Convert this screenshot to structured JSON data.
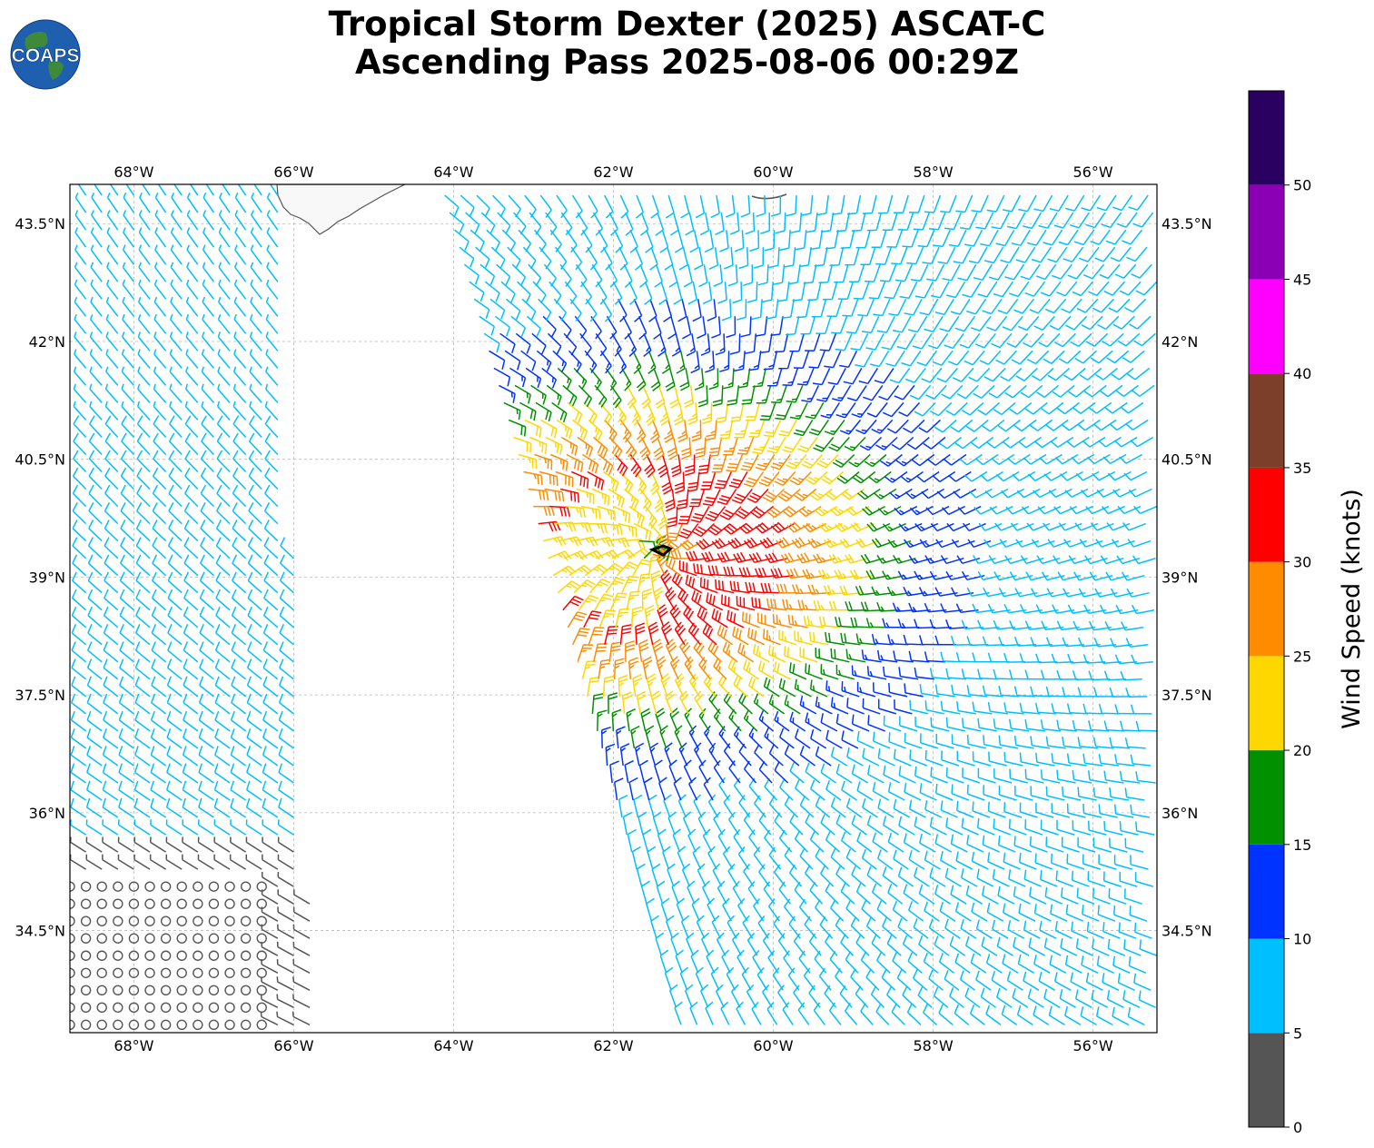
{
  "title": {
    "line1": "Tropical Storm Dexter (2025) ASCAT-C",
    "line2": "Ascending Pass 2025-08-06 00:29Z"
  },
  "logo": {
    "text": "COAPS",
    "icon": "globe-icon"
  },
  "map": {
    "lon_range": [
      -68.8,
      -55.2
    ],
    "lat_range": [
      33.2,
      44.0
    ],
    "lon_ticks": [
      {
        "value": -68,
        "label": "68°W"
      },
      {
        "value": -66,
        "label": "66°W"
      },
      {
        "value": -64,
        "label": "64°W"
      },
      {
        "value": -62,
        "label": "62°W"
      },
      {
        "value": -60,
        "label": "60°W"
      },
      {
        "value": -58,
        "label": "58°W"
      },
      {
        "value": -56,
        "label": "56°W"
      }
    ],
    "lat_ticks": [
      {
        "value": 43.5,
        "label": "43.5°N"
      },
      {
        "value": 42,
        "label": "42°N"
      },
      {
        "value": 40.5,
        "label": "40.5°N"
      },
      {
        "value": 39,
        "label": "39°N"
      },
      {
        "value": 37.5,
        "label": "37.5°N"
      },
      {
        "value": 36,
        "label": "36°N"
      },
      {
        "value": 34.5,
        "label": "34.5°N"
      }
    ],
    "grid": true,
    "storm_center": {
      "lon": -61.4,
      "lat": 39.35
    },
    "swaths": [
      {
        "name": "west",
        "lon_min": -68.8,
        "lon_max": -65.8,
        "lat_min": 33.2,
        "lat_max": 44.0
      },
      {
        "name": "east",
        "lon_min": -64.0,
        "lon_max": -55.2,
        "lat_min": 33.2,
        "lat_max": 44.0
      }
    ]
  },
  "colorbar": {
    "label": "Wind Speed (knots)",
    "bins": [
      {
        "min": 0,
        "max": 5,
        "color": "#555555"
      },
      {
        "min": 5,
        "max": 10,
        "color": "#00bfff"
      },
      {
        "min": 10,
        "max": 15,
        "color": "#0033ff"
      },
      {
        "min": 15,
        "max": 20,
        "color": "#009000"
      },
      {
        "min": 20,
        "max": 25,
        "color": "#ffd700"
      },
      {
        "min": 25,
        "max": 30,
        "color": "#ff8c00"
      },
      {
        "min": 30,
        "max": 35,
        "color": "#ff0000"
      },
      {
        "min": 35,
        "max": 40,
        "color": "#7b3f2a"
      },
      {
        "min": 40,
        "max": 45,
        "color": "#ff00ff"
      },
      {
        "min": 45,
        "max": 50,
        "color": "#8b00b4"
      },
      {
        "min": 50,
        "max": 55,
        "color": "#2a0060"
      }
    ],
    "ticks": [
      "0",
      "5",
      "10",
      "15",
      "20",
      "25",
      "30",
      "35",
      "40",
      "45",
      "50"
    ]
  }
}
